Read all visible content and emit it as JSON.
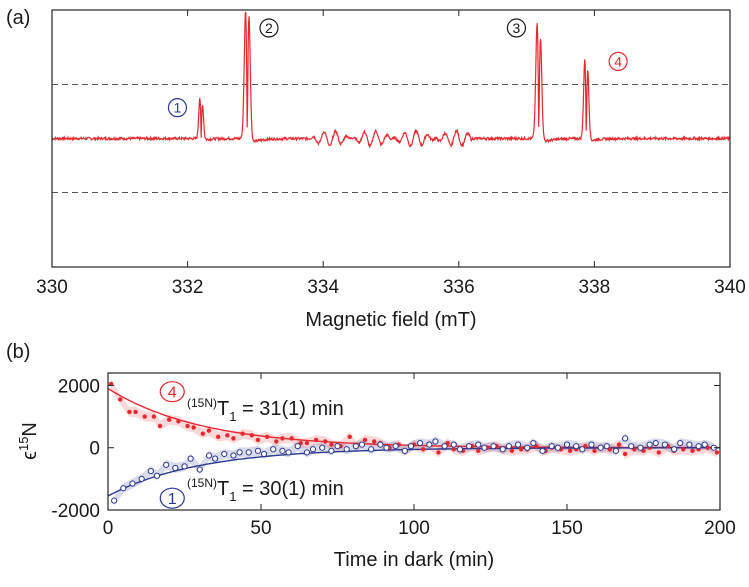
{
  "chart_data": [
    {
      "type": "line",
      "panel_label": "(a)",
      "xlabel": "Magnetic field (mT)",
      "ylabel": "",
      "xlim": [
        330,
        340
      ],
      "x_ticks": [
        "330",
        "332",
        "334",
        "336",
        "338",
        "340"
      ],
      "grid": false,
      "colors": {
        "spectrum": "#e8282f",
        "reference_lines": "#555555"
      },
      "series": [
        {
          "values_description_free": true,
          "baseline": 0,
          "peaks": [
            {
              "center": 332.2,
              "up": 0.32,
              "down": -0.28,
              "width": 0.02
            },
            {
              "center": 332.88,
              "up": 1.0,
              "down": -1.0,
              "width": 0.025
            },
            {
              "center": 337.18,
              "up": 0.9,
              "down": -0.82,
              "width": 0.025
            },
            {
              "center": 337.88,
              "up": 0.62,
              "down": -0.56,
              "width": 0.022
            }
          ]
        }
      ],
      "dashed_levels": [
        0.42,
        -0.42
      ],
      "ylim": [
        -1.0,
        1.0
      ],
      "annotations": [
        {
          "text": "1",
          "x": 331.85,
          "y": 0.24,
          "color": "#2b3990"
        },
        {
          "text": "2",
          "x": 333.2,
          "y": 0.86,
          "color": "#1a1a1a"
        },
        {
          "text": "3",
          "x": 336.85,
          "y": 0.86,
          "color": "#1a1a1a"
        },
        {
          "text": "4",
          "x": 338.35,
          "y": 0.6,
          "color": "#e8282f"
        }
      ]
    },
    {
      "type": "scatter",
      "panel_label": "(b)",
      "xlabel": "Time in dark (min)",
      "ylabel": "ϵ15N",
      "xlim": [
        0,
        200
      ],
      "ylim": [
        -2000,
        2400
      ],
      "x_ticks": [
        "0",
        "50",
        "100",
        "150",
        "200"
      ],
      "y_ticks": [
        "-2000",
        "0",
        "2000"
      ],
      "grid": false,
      "series": [
        {
          "name": "4",
          "color": "#e8282f",
          "marker": "filled-dot",
          "fit": {
            "A0": 1900,
            "T1": 31
          },
          "t": [
            1,
            4,
            7,
            9,
            12,
            15,
            17,
            20,
            23,
            26,
            28,
            31,
            33,
            36,
            39,
            41,
            44,
            47,
            49,
            52,
            55,
            57,
            60,
            63,
            65,
            68,
            71,
            73,
            76,
            79,
            81,
            84,
            87,
            89,
            92,
            95,
            97,
            100,
            103,
            105,
            108,
            111,
            113,
            116,
            119,
            121,
            124,
            127,
            129,
            132,
            135,
            137,
            140,
            143,
            145,
            148,
            151,
            153,
            156,
            159,
            161,
            164,
            167,
            169,
            172,
            175,
            177,
            180,
            183,
            185,
            188,
            191,
            193,
            196,
            199
          ],
          "values": [
            2050,
            1550,
            1150,
            1150,
            1000,
            1000,
            700,
            900,
            850,
            700,
            650,
            450,
            550,
            350,
            400,
            300,
            450,
            400,
            250,
            350,
            200,
            300,
            300,
            150,
            150,
            250,
            200,
            100,
            50,
            350,
            50,
            250,
            200,
            150,
            0,
            100,
            -100,
            100,
            -50,
            100,
            -150,
            150,
            -50,
            -100,
            50,
            -100,
            0,
            50,
            -50,
            -100,
            -50,
            -50,
            50,
            -100,
            0,
            -50,
            -100,
            -50,
            50,
            -100,
            0,
            -50,
            100,
            -200,
            -50,
            -100,
            0,
            -150,
            50,
            -100,
            -50,
            -100,
            -50,
            0,
            -150
          ]
        },
        {
          "name": "1",
          "color": "#2b3990",
          "marker": "open-circle",
          "fit": {
            "A0": -1550,
            "T1": 30
          },
          "t": [
            2,
            5,
            8,
            11,
            14,
            16,
            19,
            22,
            25,
            27,
            30,
            33,
            35,
            38,
            41,
            43,
            46,
            49,
            51,
            54,
            57,
            59,
            62,
            65,
            67,
            70,
            73,
            75,
            78,
            81,
            83,
            86,
            89,
            91,
            94,
            97,
            99,
            102,
            105,
            107,
            110,
            113,
            115,
            118,
            121,
            123,
            126,
            129,
            131,
            134,
            137,
            139,
            142,
            145,
            147,
            150,
            153,
            155,
            158,
            161,
            163,
            166,
            169,
            171,
            174,
            177,
            179,
            182,
            185,
            187,
            190,
            193,
            195,
            198
          ],
          "values": [
            -1700,
            -1300,
            -1150,
            -1000,
            -750,
            -900,
            -550,
            -650,
            -600,
            -350,
            -700,
            -250,
            -350,
            -200,
            -250,
            -150,
            -150,
            -100,
            -200,
            -50,
            -100,
            -150,
            50,
            -150,
            -50,
            0,
            -100,
            50,
            -50,
            50,
            100,
            -50,
            100,
            0,
            50,
            -100,
            50,
            150,
            100,
            200,
            50,
            100,
            -50,
            50,
            100,
            0,
            50,
            -50,
            50,
            100,
            0,
            150,
            -100,
            50,
            0,
            100,
            50,
            -50,
            100,
            0,
            50,
            -100,
            300,
            50,
            0,
            100,
            150,
            100,
            -50,
            150,
            100,
            50,
            100,
            0
          ]
        }
      ],
      "annotations": [
        {
          "text": "4",
          "color": "#e8282f"
        },
        {
          "text": "1",
          "color": "#2b3990"
        },
        {
          "text": "(15N)T1 = 31(1) min"
        },
        {
          "text": "(15N)T1 = 30(1) min"
        }
      ],
      "fit_labels": {
        "red": {
          "pre": "(15N)",
          "T": "T",
          "sub": "1",
          "post": " = 31(1) min"
        },
        "blue": {
          "pre": "(15N)",
          "T": "T",
          "sub": "1",
          "post": " = 30(1) min"
        }
      },
      "ylabel_parts": {
        "eps": "ϵ",
        "sup": "15",
        "N": "N"
      }
    }
  ]
}
